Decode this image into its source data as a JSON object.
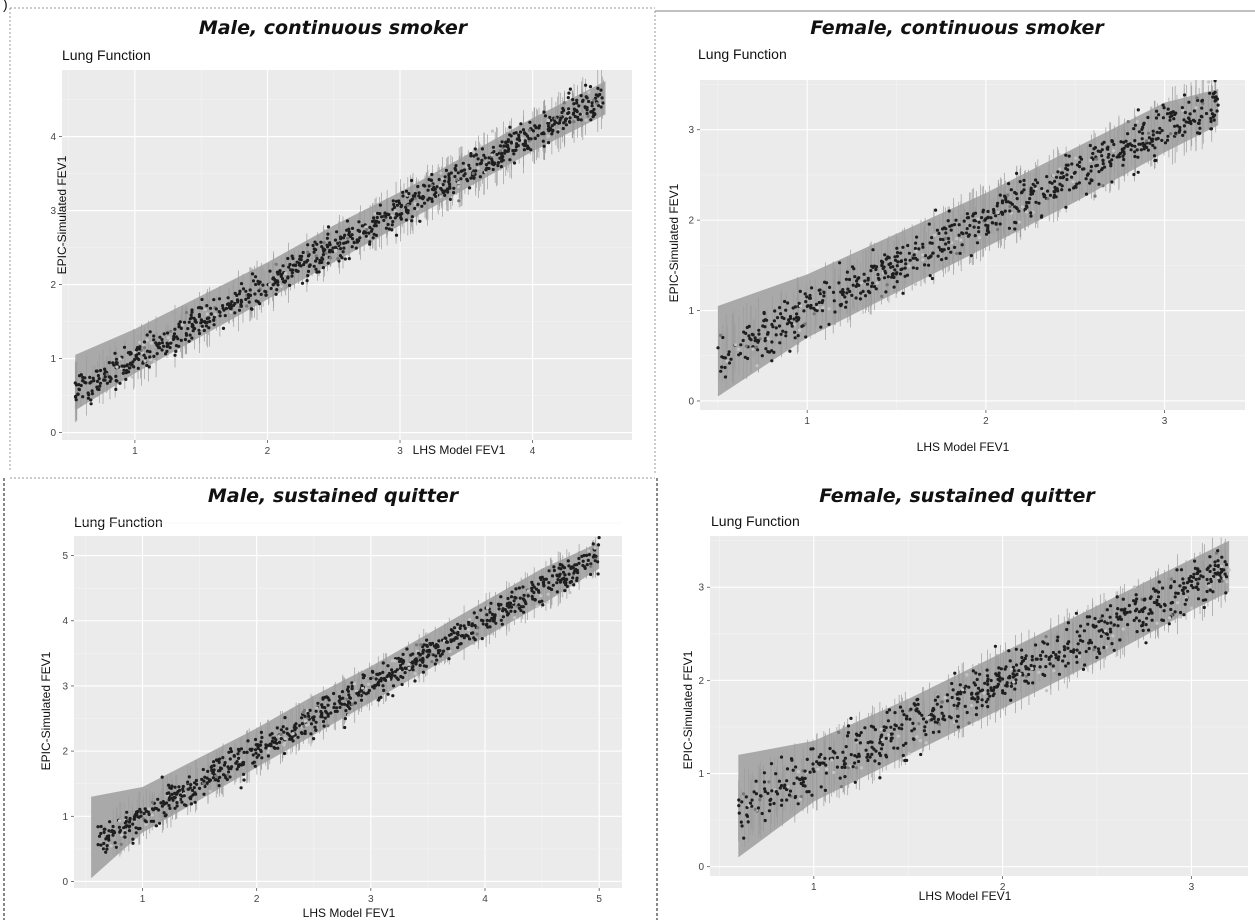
{
  "figure": {
    "corner_mark": ")",
    "colors": {
      "panel_bg": "#ebebeb",
      "grid_major": "#ffffff",
      "ribbon": "#a9a9a9",
      "points_main": "#1e1e1e",
      "points_dark_gray": "#777777",
      "points_light_gray": "#c4c4c4",
      "divider": "#9a9a9a"
    }
  },
  "chart_data": [
    {
      "type": "scatter",
      "panel_title": "Male, continuous smoker",
      "plot_label": "Lung Function",
      "xlabel": "LHS Model FEV1",
      "ylabel": "EPIC-Simulated FEV1",
      "xlim": [
        0.45,
        4.75
      ],
      "ylim": [
        -0.1,
        4.9
      ],
      "xticks": [
        1,
        2,
        3,
        4
      ],
      "yticks": [
        0,
        1,
        2,
        3,
        4
      ],
      "grid": true,
      "series": [
        {
          "role": "simulated points",
          "x_range": [
            0.55,
            4.55
          ],
          "trend": [
            0.0,
            1.0
          ],
          "spread": 0.11,
          "n": 950
        },
        {
          "role": "prediction ribbon",
          "x": [
            0.55,
            1.0,
            1.5,
            2.0,
            2.5,
            3.0,
            3.5,
            4.0,
            4.55
          ],
          "lower": [
            0.3,
            0.8,
            1.3,
            1.8,
            2.3,
            2.8,
            3.3,
            3.8,
            4.3
          ],
          "upper": [
            1.05,
            1.4,
            1.85,
            2.3,
            2.8,
            3.25,
            3.75,
            4.25,
            4.75
          ]
        }
      ]
    },
    {
      "type": "scatter",
      "panel_title": "Female, continuous smoker",
      "plot_label": "Lung Function",
      "xlabel": "LHS Model FEV1",
      "ylabel": "EPIC-Simulated FEV1",
      "xlim": [
        0.4,
        3.45
      ],
      "ylim": [
        -0.1,
        3.55
      ],
      "xticks": [
        1,
        2,
        3
      ],
      "yticks": [
        0,
        1,
        2,
        3
      ],
      "grid": true,
      "series": [
        {
          "role": "simulated points",
          "x_range": [
            0.5,
            3.3
          ],
          "trend": [
            0.0,
            1.0
          ],
          "spread": 0.13,
          "n": 750
        },
        {
          "role": "prediction ribbon",
          "x": [
            0.5,
            1.0,
            1.5,
            2.0,
            2.5,
            3.0,
            3.3
          ],
          "lower": [
            0.05,
            0.7,
            1.2,
            1.7,
            2.2,
            2.75,
            3.05
          ],
          "upper": [
            1.05,
            1.4,
            1.85,
            2.3,
            2.8,
            3.3,
            3.45
          ]
        }
      ]
    },
    {
      "type": "scatter",
      "panel_title": "Male, sustained quitter",
      "plot_label": "Lung Function",
      "xlabel": "LHS Model FEV1",
      "ylabel": "EPIC-Simulated FEV1",
      "xlim": [
        0.4,
        5.2
      ],
      "ylim": [
        -0.1,
        5.3
      ],
      "xticks": [
        1,
        2,
        3,
        4,
        5
      ],
      "yticks": [
        0,
        1,
        2,
        3,
        4,
        5
      ],
      "grid": true,
      "series": [
        {
          "role": "simulated points",
          "x_range": [
            0.6,
            5.0
          ],
          "trend": [
            0.0,
            1.0
          ],
          "spread": 0.12,
          "n": 900
        },
        {
          "role": "prediction ribbon",
          "x": [
            0.55,
            1.0,
            1.5,
            2.0,
            2.5,
            3.0,
            3.5,
            4.0,
            4.5,
            5.0
          ],
          "lower": [
            0.05,
            0.75,
            1.25,
            1.75,
            2.25,
            2.75,
            3.25,
            3.75,
            4.25,
            4.8
          ],
          "upper": [
            1.3,
            1.45,
            1.9,
            2.35,
            2.85,
            3.3,
            3.8,
            4.3,
            4.8,
            5.2
          ]
        }
      ]
    },
    {
      "type": "scatter",
      "panel_title": "Female, sustained quitter",
      "plot_label": "Lung Function",
      "xlabel": "LHS Model FEV1",
      "ylabel": "EPIC-Simulated FEV1",
      "xlim": [
        0.45,
        3.3
      ],
      "ylim": [
        -0.1,
        3.55
      ],
      "xticks": [
        1,
        2,
        3
      ],
      "yticks": [
        0,
        1,
        2,
        3
      ],
      "grid": true,
      "series": [
        {
          "role": "simulated points",
          "x_range": [
            0.6,
            3.2
          ],
          "trend": [
            0.0,
            1.0
          ],
          "spread": 0.13,
          "n": 750
        },
        {
          "role": "prediction ribbon",
          "x": [
            0.6,
            1.0,
            1.5,
            2.0,
            2.5,
            3.0,
            3.2
          ],
          "lower": [
            0.1,
            0.7,
            1.2,
            1.7,
            2.2,
            2.75,
            2.95
          ],
          "upper": [
            1.2,
            1.35,
            1.8,
            2.3,
            2.8,
            3.3,
            3.5
          ]
        }
      ]
    }
  ]
}
